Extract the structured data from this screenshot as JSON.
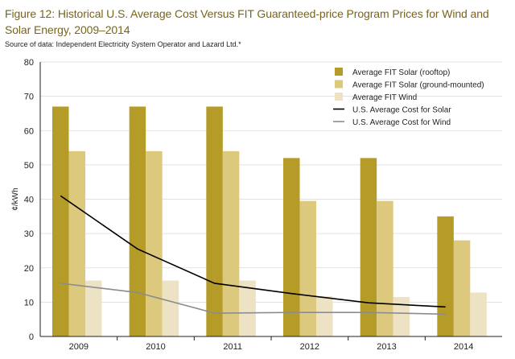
{
  "figure": {
    "title": "Figure 12: Historical U.S. Average Cost Versus FIT Guaranteed-price Program Prices for Wind and Solar Energy, 2009–2014",
    "source": "Source of data: Independent Electricity System Operator and Lazard Ltd.*"
  },
  "chart_data": {
    "type": "bar",
    "ylabel": "¢/kWh",
    "ylim": [
      0,
      80
    ],
    "yticks": [
      0,
      10,
      20,
      30,
      40,
      50,
      60,
      70,
      80
    ],
    "grid": true,
    "legend_position": "top-right",
    "categories": [
      "2009",
      "2010",
      "2011",
      "2012",
      "2013",
      "2014"
    ],
    "series": [
      {
        "name": "Average FIT Solar (rooftop)",
        "kind": "bar",
        "color": "#b59b28",
        "values": [
          67,
          67,
          67,
          52,
          52,
          35
        ]
      },
      {
        "name": "Average FIT Solar (ground-mounted)",
        "kind": "bar",
        "color": "#dcc97e",
        "values": [
          54,
          54,
          54,
          39.5,
          39.5,
          28
        ]
      },
      {
        "name": "Average FIT Wind",
        "kind": "bar",
        "color": "#ede3c4",
        "values": [
          16.3,
          16.3,
          16.3,
          11.7,
          11.5,
          12.8
        ]
      },
      {
        "name": "U.S. Average Cost for Solar",
        "kind": "line",
        "color": "#000000",
        "values": [
          41,
          25.5,
          15.5,
          12.5,
          9.8,
          8.6
        ]
      },
      {
        "name": "U.S. Average Cost for Wind",
        "kind": "line",
        "color": "#8c8c8c",
        "values": [
          15.5,
          12.8,
          6.8,
          7,
          7,
          6.5
        ]
      }
    ]
  }
}
